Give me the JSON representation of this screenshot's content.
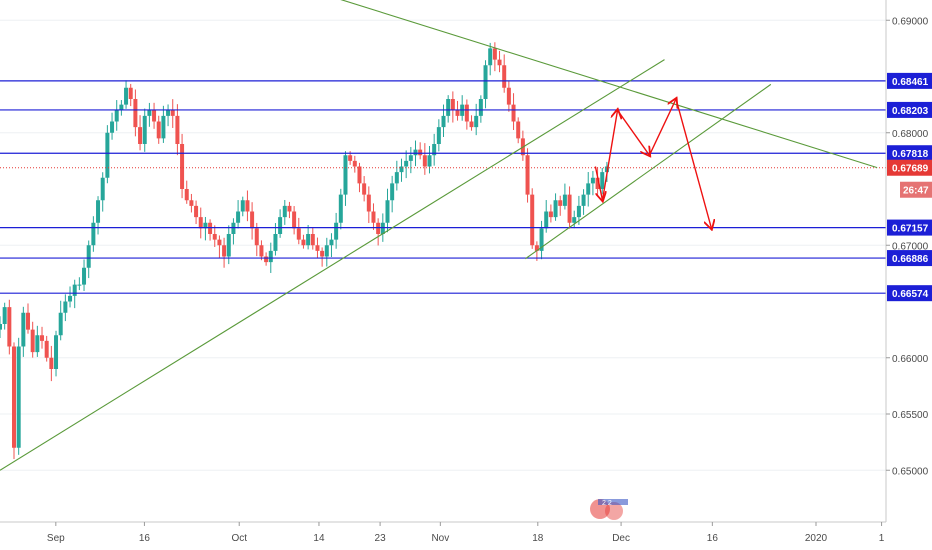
{
  "chart_data": {
    "type": "line",
    "title": "",
    "xlabel": "",
    "ylabel": "",
    "ylim": [
      0.6454,
      0.6918
    ],
    "grid": true,
    "x_tick_labels": [
      "Sep",
      "16",
      "Oct",
      "14",
      "23",
      "Nov",
      "18",
      "Dec",
      "16",
      "2020",
      "1"
    ],
    "y_tick_labels": [
      "0.69000",
      "0.68000",
      "0.67000",
      "0.66000",
      "0.65500",
      "0.65000"
    ],
    "price_axis_labels": [
      "0.68461",
      "0.68203",
      "0.67818",
      "0.67689",
      "26:47",
      "0.67157",
      "0.66886",
      "0.66574"
    ],
    "horizontal_levels": [
      0.68461,
      0.68203,
      0.67818,
      0.67157,
      0.66886,
      0.66574
    ],
    "current_price": 0.67689,
    "countdown": "26:47",
    "colors": {
      "up": "#26a69a",
      "down": "#ef5350",
      "level": "#1c1fd6",
      "trend": "#5a9a3a",
      "projection": "#ee1111",
      "current": "#e53935"
    },
    "series": [
      {
        "values": [
          0.663,
          0.6645,
          0.661,
          0.652,
          0.661,
          0.664,
          0.6625,
          0.6605,
          0.662,
          0.6615,
          0.66,
          0.659,
          0.662,
          0.664,
          0.665,
          0.6655,
          0.6665,
          0.6665,
          0.668,
          0.67,
          0.672,
          0.674,
          0.676,
          0.68,
          0.681,
          0.682,
          0.6825,
          0.684,
          0.683,
          0.6805,
          0.679,
          0.6815,
          0.682,
          0.681,
          0.6795,
          0.6815,
          0.682,
          0.6815,
          0.679,
          0.675,
          0.674,
          0.6735,
          0.6725,
          0.6715,
          0.672,
          0.671,
          0.6705,
          0.67,
          0.669,
          0.671,
          0.672,
          0.673,
          0.674,
          0.673,
          0.6715,
          0.67,
          0.669,
          0.6685,
          0.6695,
          0.671,
          0.6725,
          0.6735,
          0.673,
          0.6715,
          0.6705,
          0.67,
          0.671,
          0.67,
          0.6695,
          0.669,
          0.67,
          0.6705,
          0.672,
          0.6745,
          0.678,
          0.6775,
          0.677,
          0.6755,
          0.6745,
          0.673,
          0.672,
          0.671,
          0.672,
          0.674,
          0.6755,
          0.6765,
          0.677,
          0.6775,
          0.678,
          0.6785,
          0.678,
          0.677,
          0.678,
          0.679,
          0.6805,
          0.6815,
          0.683,
          0.682,
          0.6815,
          0.6825,
          0.681,
          0.6805,
          0.6815,
          0.683,
          0.686,
          0.6875,
          0.6865,
          0.686,
          0.684,
          0.6825,
          0.681,
          0.6795,
          0.678,
          0.6745,
          0.67,
          0.6695,
          0.6715,
          0.673,
          0.6725,
          0.674,
          0.6735,
          0.6745,
          0.672,
          0.6725,
          0.6735,
          0.6745,
          0.6755,
          0.676,
          0.675,
          0.6765,
          0.677
        ]
      }
    ],
    "annotations": [
      {
        "type": "trendline",
        "points": [
          [
            0.0,
            0.65
          ],
          [
            0.33,
            0.6656
          ],
          [
            0.75,
            0.6865
          ]
        ]
      },
      {
        "type": "trendline",
        "points": [
          [
            0.37,
            0.6922
          ],
          [
            0.99,
            0.6769
          ]
        ]
      },
      {
        "type": "trendline",
        "points": [
          [
            0.593,
            0.6688
          ],
          [
            0.87,
            0.6843
          ]
        ]
      },
      {
        "type": "projection",
        "label": "arrows",
        "values": [
          0.677,
          0.674,
          0.682,
          0.678,
          0.683,
          0.6715
        ]
      }
    ]
  }
}
